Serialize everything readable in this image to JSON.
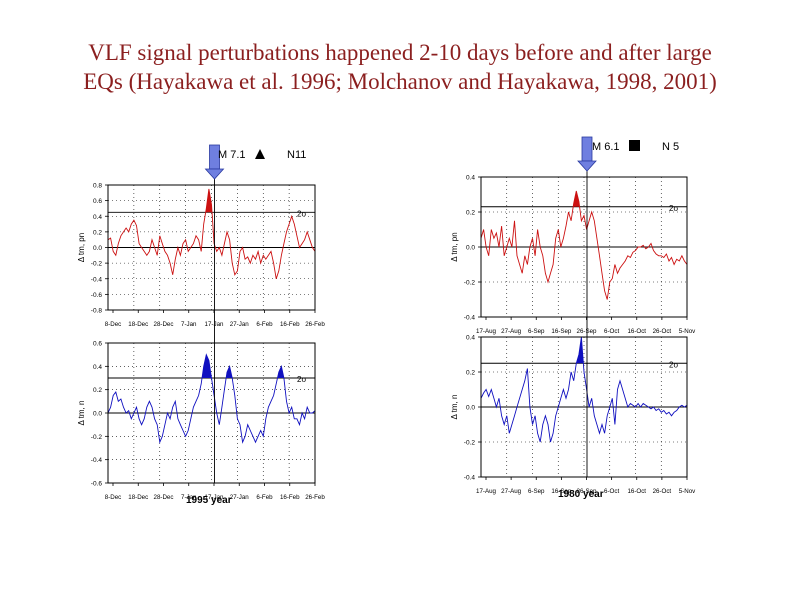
{
  "title": {
    "line1": "VLF signal perturbations happened 2-10 days before and after large",
    "line2": "EQs (Hayakawa et al. 1996; Molchanov and Hayakawa, 1998, 2001)"
  },
  "colors": {
    "title": "#8b1f1f",
    "red_series": "#cc1111",
    "blue_series": "#1010c0",
    "arrow": "#6f7fe0",
    "frame": "#000000"
  },
  "left_group": {
    "eq_label": "M 7.1",
    "eq_marker_icon": "triangle-icon",
    "station": "N11",
    "year_label": "1995 year",
    "x_ticks": [
      "8-Dec",
      "18-Dec",
      "28-Dec",
      "7-Jan",
      "17-Jan",
      "27-Jan",
      "6-Feb",
      "16-Feb",
      "26-Feb"
    ],
    "eq_date": "17-Jan"
  },
  "right_group": {
    "eq_label": "M 6.1",
    "eq_marker_icon": "square-icon",
    "station": "N 5",
    "year_label": "1980 year",
    "x_ticks": [
      "17-Aug",
      "27-Aug",
      "6-Sep",
      "16-Sep",
      "26-Sep",
      "6-Oct",
      "16-Oct",
      "26-Oct",
      "5-Nov"
    ],
    "eq_date": "26-Sep"
  },
  "chart_data": [
    {
      "type": "line",
      "id": "left-top",
      "ylabel": "Δ tm, pn",
      "threshold_label": "2σ",
      "ylim": [
        -0.8,
        0.8
      ],
      "yticks": [
        "0.8",
        "0.6",
        "0.4",
        "0.2",
        "0.0",
        "-0.2",
        "-0.4",
        "-0.6",
        "-0.8"
      ],
      "ytick_values": [
        0.8,
        0.6,
        0.4,
        0.2,
        0.0,
        -0.2,
        -0.4,
        -0.6,
        -0.8
      ],
      "xlim": [
        0,
        80
      ],
      "threshold": 0.45,
      "eq_x": 40,
      "series": [
        {
          "color": "#cc1111",
          "values": [
            0.1,
            0.12,
            -0.05,
            -0.1,
            0.05,
            0.15,
            0.2,
            0.25,
            0.2,
            0.3,
            0.35,
            0.28,
            0.05,
            0.0,
            -0.05,
            -0.1,
            -0.05,
            0.1,
            0.0,
            -0.1,
            0.15,
            0.05,
            -0.05,
            -0.1,
            -0.2,
            -0.35,
            -0.15,
            0.0,
            -0.1,
            0.05,
            0.1,
            -0.05,
            0.0,
            0.05,
            0.15,
            0.1,
            -0.05,
            0.3,
            0.5,
            0.75,
            0.55,
            0.05,
            -0.05,
            0.0,
            -0.1,
            0.05,
            0.2,
            0.1,
            -0.2,
            -0.35,
            -0.3,
            -0.05,
            0.0,
            -0.15,
            -0.12,
            -0.2,
            -0.1,
            -0.15,
            -0.05,
            -0.2,
            -0.1,
            -0.15,
            -0.1,
            -0.05,
            -0.2,
            -0.4,
            -0.3,
            -0.1,
            0.05,
            0.2,
            0.3,
            0.4,
            0.3,
            0.15,
            0.0,
            0.05,
            0.1,
            0.2,
            0.1,
            0.0,
            -0.05
          ]
        }
      ]
    },
    {
      "type": "line",
      "id": "left-bottom",
      "ylabel": "Δ tm, n",
      "threshold_label": "2σ",
      "ylim": [
        -0.6,
        0.6
      ],
      "yticks": [
        "0.6",
        "0.4",
        "0.2",
        "0.0",
        "-0.2",
        "-0.4",
        "-0.6"
      ],
      "ytick_values": [
        0.6,
        0.4,
        0.2,
        0.0,
        -0.2,
        -0.4,
        -0.6
      ],
      "xlim": [
        0,
        80
      ],
      "threshold": 0.3,
      "eq_x": 40,
      "series": [
        {
          "color": "#1010c0",
          "values": [
            0.0,
            0.05,
            0.15,
            0.18,
            0.1,
            0.12,
            0.05,
            0.0,
            0.02,
            -0.05,
            0.0,
            0.05,
            -0.05,
            -0.1,
            -0.05,
            0.05,
            0.1,
            0.05,
            -0.05,
            -0.1,
            -0.25,
            -0.2,
            -0.1,
            0.0,
            -0.05,
            0.05,
            0.1,
            -0.05,
            -0.1,
            -0.15,
            -0.2,
            -0.15,
            -0.05,
            0.05,
            0.1,
            0.15,
            0.25,
            0.4,
            0.5,
            0.45,
            0.3,
            0.15,
            0.0,
            -0.1,
            0.05,
            0.2,
            0.35,
            0.4,
            0.3,
            0.15,
            -0.05,
            -0.1,
            -0.25,
            -0.2,
            -0.1,
            -0.15,
            -0.2,
            -0.25,
            -0.2,
            -0.15,
            -0.2,
            -0.05,
            0.05,
            0.1,
            0.15,
            0.25,
            0.35,
            0.4,
            0.3,
            0.1,
            0.0,
            0.05,
            -0.05,
            -0.05,
            -0.1,
            0.0,
            -0.05,
            0.05,
            0.0,
            0.0,
            0.02
          ]
        }
      ]
    },
    {
      "type": "line",
      "id": "right-top",
      "ylabel": "Δ tm, pn",
      "threshold_label": "2σ",
      "ylim": [
        -0.4,
        0.4
      ],
      "yticks": [
        "0.4",
        "0.2",
        "0.0",
        "-0.2",
        "-0.4"
      ],
      "ytick_values": [
        0.4,
        0.2,
        0.0,
        -0.2,
        -0.4
      ],
      "xlim": [
        0,
        80
      ],
      "threshold": 0.23,
      "eq_x": 40,
      "series": [
        {
          "color": "#cc1111",
          "values": [
            0.05,
            0.1,
            0.0,
            -0.05,
            0.1,
            0.05,
            0.08,
            0.0,
            0.12,
            -0.05,
            0.0,
            0.05,
            0.0,
            0.15,
            -0.05,
            -0.1,
            -0.15,
            -0.05,
            -0.1,
            0.0,
            0.05,
            -0.05,
            0.1,
            0.0,
            -0.05,
            -0.15,
            -0.2,
            -0.15,
            -0.1,
            0.05,
            0.1,
            0.0,
            0.05,
            0.12,
            0.2,
            0.15,
            0.25,
            0.32,
            0.26,
            0.15,
            0.18,
            0.1,
            0.15,
            0.2,
            0.15,
            0.05,
            -0.05,
            -0.15,
            -0.25,
            -0.3,
            -0.2,
            -0.18,
            -0.1,
            -0.15,
            -0.12,
            -0.1,
            -0.08,
            -0.05,
            -0.06,
            -0.03,
            -0.02,
            0.0,
            0.0,
            0.01,
            -0.01,
            0.0,
            0.02,
            -0.02,
            -0.04,
            -0.05,
            -0.05,
            -0.06,
            -0.04,
            -0.08,
            -0.06,
            -0.1,
            -0.07,
            -0.08,
            -0.05,
            -0.08,
            -0.1
          ]
        }
      ]
    },
    {
      "type": "line",
      "id": "right-bottom",
      "ylabel": "Δ tm, n",
      "threshold_label": "2σ",
      "ylim": [
        -0.4,
        0.4
      ],
      "yticks": [
        "0.4",
        "0.2",
        "0.0",
        "-0.2",
        "-0.4"
      ],
      "ytick_values": [
        0.4,
        0.2,
        0.0,
        -0.2,
        -0.4
      ],
      "xlim": [
        0,
        80
      ],
      "threshold": 0.25,
      "eq_x": 40,
      "series": [
        {
          "color": "#1010c0",
          "values": [
            0.05,
            0.08,
            0.1,
            0.06,
            0.1,
            0.05,
            0.0,
            0.05,
            -0.05,
            -0.1,
            -0.05,
            -0.15,
            -0.1,
            -0.05,
            0.0,
            0.05,
            0.1,
            0.15,
            0.22,
            0.0,
            -0.1,
            -0.05,
            -0.15,
            -0.2,
            -0.1,
            -0.05,
            -0.1,
            -0.2,
            -0.15,
            -0.05,
            0.0,
            0.05,
            0.1,
            0.05,
            0.1,
            0.2,
            0.15,
            0.25,
            0.3,
            0.4,
            0.2,
            0.1,
            0.0,
            0.05,
            -0.05,
            -0.1,
            -0.15,
            -0.1,
            -0.15,
            -0.05,
            0.0,
            0.05,
            -0.1,
            0.1,
            0.15,
            0.1,
            0.05,
            0.0,
            0.02,
            0.01,
            0.0,
            0.02,
            0.0,
            0.02,
            0.01,
            0.0,
            -0.01,
            0.0,
            -0.02,
            -0.01,
            -0.03,
            -0.02,
            -0.04,
            -0.03,
            -0.05,
            -0.03,
            -0.02,
            0.0,
            0.01,
            0.0,
            0.01
          ]
        }
      ]
    }
  ]
}
